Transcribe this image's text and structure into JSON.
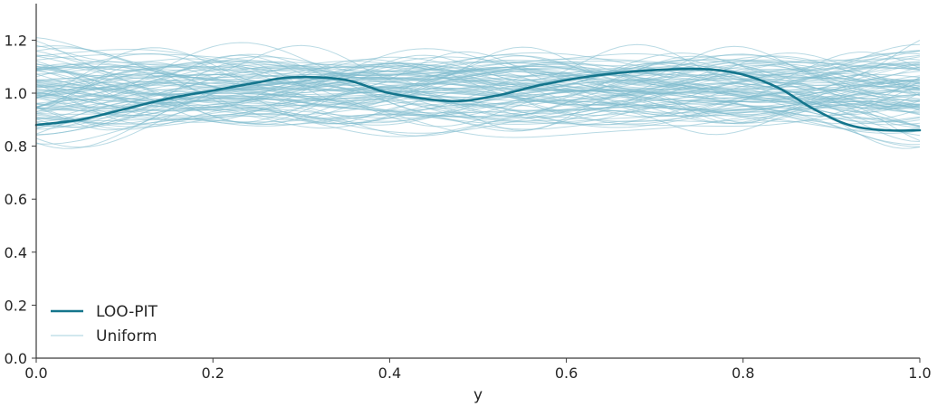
{
  "chart_data": {
    "type": "line",
    "title": "",
    "xlabel": "y",
    "ylabel": "",
    "xlim": [
      0.0,
      1.0
    ],
    "ylim": [
      0.0,
      1.33
    ],
    "grid": false,
    "legend_position": "lower left",
    "x_ticks": [
      "0.0",
      "0.2",
      "0.4",
      "0.6",
      "0.8",
      "1.0"
    ],
    "y_ticks": [
      "0.0",
      "0.2",
      "0.4",
      "0.6",
      "0.8",
      "1.0",
      "1.2"
    ],
    "colors": {
      "loo_pit": "#14758c",
      "uniform": "#7fbccd",
      "axis": "#3a3a3a",
      "text": "#262626"
    },
    "legend": [
      {
        "label": "LOO-PIT",
        "style": "thick-dark"
      },
      {
        "label": "Uniform",
        "style": "thin-light"
      }
    ],
    "series": [
      {
        "name": "LOO-PIT",
        "x": [
          0.0,
          0.05,
          0.1,
          0.15,
          0.2,
          0.25,
          0.29,
          0.35,
          0.4,
          0.47,
          0.52,
          0.57,
          0.62,
          0.67,
          0.72,
          0.76,
          0.8,
          0.84,
          0.88,
          0.92,
          0.96,
          1.0
        ],
        "values": [
          0.88,
          0.9,
          0.94,
          0.98,
          1.01,
          1.04,
          1.06,
          1.05,
          1.0,
          0.97,
          0.99,
          1.03,
          1.06,
          1.08,
          1.09,
          1.09,
          1.07,
          1.02,
          0.94,
          0.88,
          0.86,
          0.86
        ]
      },
      {
        "name": "Uniform",
        "description": "~100 smoothed KDE samples of uniform draws, values in range ~0.80-1.31 around 1.0"
      }
    ]
  }
}
